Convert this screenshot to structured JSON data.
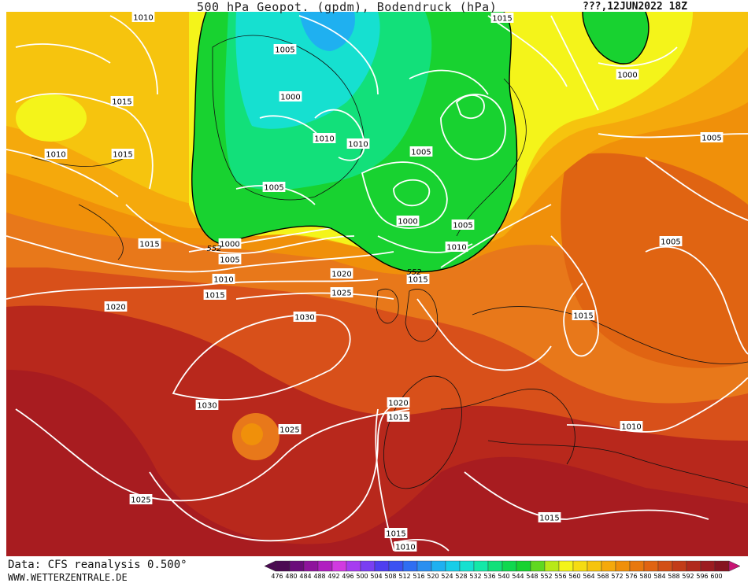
{
  "header": {
    "title": "500 hPa Geopot. (gpdm), Bodendruck (hPa)",
    "runtime": "???,12JUN2022 18Z"
  },
  "footer": {
    "data_source": "Data: CFS reanalysis 0.500°",
    "website": "WWW.WETTERZENTRALE.DE"
  },
  "colorbar": {
    "labels": [
      "476",
      "480",
      "484",
      "488",
      "492",
      "496",
      "500",
      "504",
      "508",
      "512",
      "516",
      "520",
      "524",
      "528",
      "532",
      "536",
      "540",
      "544",
      "548",
      "552",
      "556",
      "560",
      "564",
      "568",
      "572",
      "576",
      "580",
      "584",
      "588",
      "592",
      "596",
      "600"
    ],
    "colors": [
      "#4b0b52",
      "#6a0c7a",
      "#8e139c",
      "#b01ec0",
      "#d13ae0",
      "#a63cf0",
      "#7a3ff2",
      "#4f3ef0",
      "#3b52f2",
      "#2f6ef2",
      "#2b8ff0",
      "#1fb0f0",
      "#18cde8",
      "#16e0d0",
      "#14e8a8",
      "#12e07a",
      "#10d84f",
      "#18d230",
      "#60d820",
      "#b8e818",
      "#f4f41a",
      "#f5dc12",
      "#f6c40e",
      "#f5a90c",
      "#f0900a",
      "#e8780e",
      "#e06412",
      "#d25016",
      "#c23c18",
      "#b02a1c",
      "#9c1c20",
      "#861420",
      "#c81474"
    ]
  },
  "isobar_labels": [
    {
      "text": "1010"
    },
    {
      "text": "1015"
    },
    {
      "text": "1005"
    },
    {
      "text": "1000"
    },
    {
      "text": "1015"
    },
    {
      "text": "1010"
    },
    {
      "text": "1015"
    },
    {
      "text": "1010"
    },
    {
      "text": "1010"
    },
    {
      "text": "1005"
    },
    {
      "text": "1000"
    },
    {
      "text": "1005"
    },
    {
      "text": "1005"
    },
    {
      "text": "1000"
    },
    {
      "text": "1005"
    },
    {
      "text": "1010"
    },
    {
      "text": "1015"
    },
    {
      "text": "1000"
    },
    {
      "text": "1005"
    },
    {
      "text": "1010"
    },
    {
      "text": "1020"
    },
    {
      "text": "1015"
    },
    {
      "text": "1025"
    },
    {
      "text": "1015"
    },
    {
      "text": "1020"
    },
    {
      "text": "1030"
    },
    {
      "text": "1015"
    },
    {
      "text": "1005"
    },
    {
      "text": "1030"
    },
    {
      "text": "1020"
    },
    {
      "text": "1015"
    },
    {
      "text": "1025"
    },
    {
      "text": "1010"
    },
    {
      "text": "1025"
    },
    {
      "text": "1015"
    },
    {
      "text": "1015"
    },
    {
      "text": "1010"
    }
  ],
  "contour_labels": [
    {
      "text": "552"
    },
    {
      "text": "552"
    }
  ]
}
